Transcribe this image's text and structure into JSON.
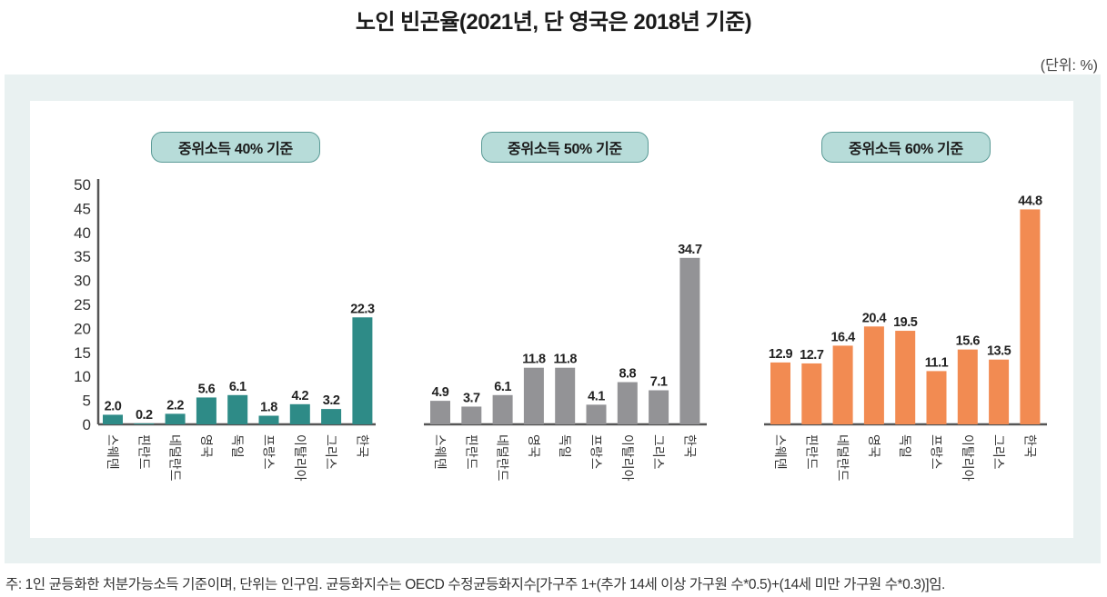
{
  "page": {
    "title": "노인 빈곤율(2021년, 단 영국은 2018년 기준)",
    "unit": "(단위: %)",
    "note": "주: 1인 균등화한 처분가능소득 기준이며, 단위는 인구임. 균등화지수는 OECD 수정균등화지수[가구주 1+(추가 14세 이상 가구원 수*0.5)+(14세 미만 가구원 수*0.3)]임."
  },
  "colors": {
    "series_40": "#2e8b87",
    "series_50": "#939396",
    "series_60": "#f28b52",
    "axis": "#555555",
    "panel_bg": "#e9f1f1",
    "pill_bg": "#b7dcd9",
    "pill_border": "#5a9a96"
  },
  "chart_data": [
    {
      "type": "bar",
      "title": "중위소득 40% 기준",
      "categories": [
        "스웨덴",
        "핀란드",
        "네덜란드",
        "영국",
        "독일",
        "프랑스",
        "이탈리아",
        "그리스",
        "한국"
      ],
      "values": [
        2.0,
        0.2,
        2.2,
        5.6,
        6.1,
        1.8,
        4.2,
        3.2,
        22.3
      ],
      "value_labels": [
        "2.0",
        "0.2",
        "2.2",
        "5.6",
        "6.1",
        "1.8",
        "4.2",
        "3.2",
        "22.3"
      ],
      "ylim": [
        0,
        50
      ],
      "yticks": [
        "0",
        "5",
        "10",
        "15",
        "20",
        "25",
        "30",
        "35",
        "40",
        "45",
        "50"
      ],
      "xlabel": "",
      "ylabel": "",
      "grid": false,
      "legend": "none"
    },
    {
      "type": "bar",
      "title": "중위소득 50% 기준",
      "categories": [
        "스웨덴",
        "핀란드",
        "네덜란드",
        "영국",
        "독일",
        "프랑스",
        "이탈리아",
        "그리스",
        "한국"
      ],
      "values": [
        4.9,
        3.7,
        6.1,
        11.8,
        11.8,
        4.1,
        8.8,
        7.1,
        34.7
      ],
      "value_labels": [
        "4.9",
        "3.7",
        "6.1",
        "11.8",
        "11.8",
        "4.1",
        "8.8",
        "7.1",
        "34.7"
      ],
      "ylim": [
        0,
        50
      ],
      "xlabel": "",
      "ylabel": "",
      "grid": false,
      "legend": "none"
    },
    {
      "type": "bar",
      "title": "중위소득 60% 기준",
      "categories": [
        "스웨덴",
        "핀란드",
        "네덜란드",
        "영국",
        "독일",
        "프랑스",
        "이탈리아",
        "그리스",
        "한국"
      ],
      "values": [
        12.9,
        12.7,
        16.4,
        20.4,
        19.5,
        11.1,
        15.6,
        13.5,
        44.8
      ],
      "value_labels": [
        "12.9",
        "12.7",
        "16.4",
        "20.4",
        "19.5",
        "11.1",
        "15.6",
        "13.5",
        "44.8"
      ],
      "ylim": [
        0,
        50
      ],
      "xlabel": "",
      "ylabel": "",
      "grid": false,
      "legend": "none"
    }
  ]
}
